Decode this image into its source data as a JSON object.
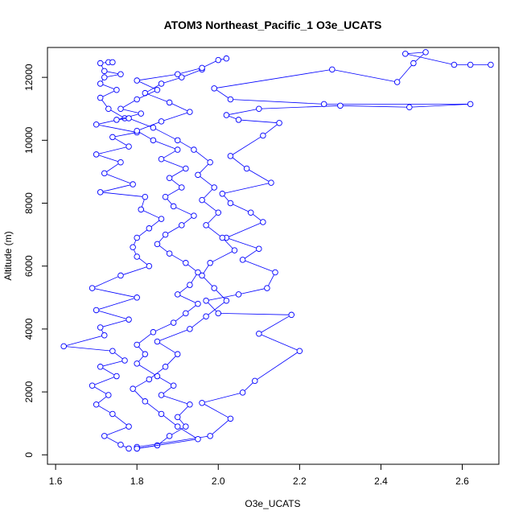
{
  "chart_data": {
    "type": "scatter",
    "title": "ATOM3 Northeast_Pacific_1 O3e_UCATS",
    "xlabel": "O3e_UCATS",
    "ylabel": "Altitude (m)",
    "xlim": [
      1.58,
      2.69
    ],
    "ylim": [
      -300,
      12950
    ],
    "x_ticks": [
      "1.6",
      "1.8",
      "2.0",
      "2.2",
      "2.4",
      "2.6"
    ],
    "y_ticks": [
      "0",
      "2000",
      "4000",
      "6000",
      "8000",
      "10000",
      "12000"
    ],
    "line_color": "#0000ff",
    "marker": "open-circle",
    "connected": true,
    "series": [
      {
        "values": [
          [
            1.78,
            200
          ],
          [
            1.76,
            320
          ],
          [
            1.72,
            600
          ],
          [
            1.78,
            900
          ],
          [
            1.74,
            1300
          ],
          [
            1.7,
            1600
          ],
          [
            1.73,
            1900
          ],
          [
            1.69,
            2200
          ],
          [
            1.75,
            2500
          ],
          [
            1.71,
            2800
          ],
          [
            1.77,
            3000
          ],
          [
            1.74,
            3300
          ],
          [
            1.62,
            3450
          ],
          [
            1.72,
            3800
          ],
          [
            1.71,
            4050
          ],
          [
            1.78,
            4300
          ],
          [
            1.7,
            4600
          ],
          [
            1.8,
            5000
          ],
          [
            1.69,
            5300
          ],
          [
            1.76,
            5700
          ],
          [
            1.83,
            6000
          ],
          [
            1.8,
            6300
          ],
          [
            1.79,
            6600
          ],
          [
            1.8,
            6900
          ],
          [
            1.83,
            7200
          ],
          [
            1.86,
            7500
          ],
          [
            1.81,
            7800
          ],
          [
            1.82,
            8200
          ],
          [
            1.71,
            8350
          ],
          [
            1.79,
            8600
          ],
          [
            1.72,
            8950
          ],
          [
            1.76,
            9300
          ],
          [
            1.7,
            9550
          ],
          [
            1.78,
            9800
          ],
          [
            1.74,
            10100
          ],
          [
            1.8,
            10250
          ],
          [
            1.7,
            10500
          ],
          [
            1.77,
            10700
          ],
          [
            1.73,
            11000
          ],
          [
            1.71,
            11350
          ],
          [
            1.75,
            11600
          ],
          [
            1.71,
            11800
          ],
          [
            1.72,
            12000
          ],
          [
            1.76,
            12100
          ],
          [
            1.72,
            12200
          ],
          [
            1.71,
            12450
          ],
          [
            1.73,
            12480
          ],
          [
            1.74,
            12480
          ]
        ]
      },
      {
        "values": [
          [
            1.8,
            200
          ],
          [
            1.85,
            300
          ],
          [
            1.88,
            600
          ],
          [
            1.92,
            900
          ],
          [
            1.9,
            1200
          ],
          [
            1.93,
            1600
          ],
          [
            1.86,
            1900
          ],
          [
            1.89,
            2200
          ],
          [
            1.85,
            2500
          ],
          [
            1.8,
            2900
          ],
          [
            1.82,
            3200
          ],
          [
            1.8,
            3500
          ],
          [
            1.84,
            3900
          ],
          [
            1.89,
            4200
          ],
          [
            1.92,
            4500
          ],
          [
            1.95,
            4800
          ],
          [
            1.9,
            5100
          ],
          [
            1.93,
            5400
          ],
          [
            1.95,
            5800
          ],
          [
            1.92,
            6100
          ],
          [
            1.88,
            6400
          ],
          [
            1.85,
            6700
          ],
          [
            1.87,
            7000
          ],
          [
            1.91,
            7300
          ],
          [
            1.94,
            7600
          ],
          [
            1.89,
            7900
          ],
          [
            1.87,
            8200
          ],
          [
            1.91,
            8500
          ],
          [
            1.88,
            8800
          ],
          [
            1.92,
            9100
          ],
          [
            1.86,
            9400
          ],
          [
            1.9,
            9700
          ],
          [
            1.84,
            10000
          ],
          [
            1.8,
            10300
          ],
          [
            1.86,
            10600
          ],
          [
            1.93,
            10900
          ],
          [
            1.88,
            11200
          ],
          [
            1.82,
            11500
          ],
          [
            1.86,
            11800
          ],
          [
            1.91,
            12000
          ],
          [
            1.96,
            12250
          ]
        ]
      },
      {
        "values": [
          [
            1.8,
            250
          ],
          [
            1.98,
            600
          ],
          [
            2.03,
            1150
          ],
          [
            1.96,
            1650
          ],
          [
            2.06,
            1980
          ],
          [
            2.09,
            2350
          ],
          [
            2.2,
            3300
          ],
          [
            2.1,
            3850
          ],
          [
            2.18,
            4450
          ],
          [
            2.0,
            4500
          ],
          [
            1.97,
            4900
          ],
          [
            2.05,
            5100
          ],
          [
            2.12,
            5300
          ],
          [
            2.14,
            5800
          ],
          [
            2.06,
            6200
          ],
          [
            2.1,
            6550
          ],
          [
            2.02,
            6900
          ],
          [
            2.11,
            7400
          ],
          [
            2.08,
            7700
          ],
          [
            2.03,
            8000
          ],
          [
            2.01,
            8300
          ],
          [
            2.13,
            8650
          ],
          [
            2.07,
            9100
          ],
          [
            2.03,
            9500
          ],
          [
            2.11,
            10150
          ],
          [
            2.15,
            10550
          ],
          [
            2.05,
            10650
          ],
          [
            2.02,
            10800
          ],
          [
            2.1,
            11000
          ],
          [
            2.3,
            11100
          ],
          [
            2.47,
            11050
          ],
          [
            2.62,
            11150
          ],
          [
            2.26,
            11150
          ],
          [
            2.03,
            11300
          ],
          [
            1.99,
            11650
          ],
          [
            2.28,
            12250
          ],
          [
            2.44,
            11850
          ],
          [
            2.48,
            12450
          ],
          [
            2.51,
            12800
          ],
          [
            2.46,
            12750
          ],
          [
            2.58,
            12400
          ],
          [
            2.62,
            12400
          ],
          [
            2.67,
            12400
          ]
        ]
      },
      {
        "values": [
          [
            1.8,
            200
          ],
          [
            1.95,
            500
          ],
          [
            1.9,
            900
          ],
          [
            1.86,
            1300
          ],
          [
            1.82,
            1700
          ],
          [
            1.79,
            2100
          ],
          [
            1.83,
            2400
          ],
          [
            1.87,
            2800
          ],
          [
            1.9,
            3200
          ],
          [
            1.85,
            3600
          ],
          [
            1.93,
            4000
          ],
          [
            1.97,
            4400
          ],
          [
            2.02,
            4900
          ],
          [
            1.99,
            5300
          ],
          [
            1.96,
            5700
          ],
          [
            1.98,
            6100
          ],
          [
            2.04,
            6500
          ],
          [
            2.01,
            6900
          ],
          [
            1.97,
            7300
          ],
          [
            2.0,
            7700
          ],
          [
            1.96,
            8100
          ],
          [
            1.99,
            8500
          ],
          [
            1.95,
            8900
          ],
          [
            1.98,
            9300
          ],
          [
            1.94,
            9700
          ],
          [
            1.9,
            10000
          ],
          [
            1.84,
            10400
          ],
          [
            1.78,
            10700
          ],
          [
            1.75,
            10650
          ],
          [
            1.81,
            10850
          ],
          [
            1.76,
            11000
          ],
          [
            1.8,
            11300
          ],
          [
            1.85,
            11600
          ],
          [
            1.8,
            11900
          ],
          [
            1.9,
            12100
          ],
          [
            1.96,
            12300
          ],
          [
            2.0,
            12550
          ],
          [
            2.02,
            12600
          ]
        ]
      }
    ]
  }
}
